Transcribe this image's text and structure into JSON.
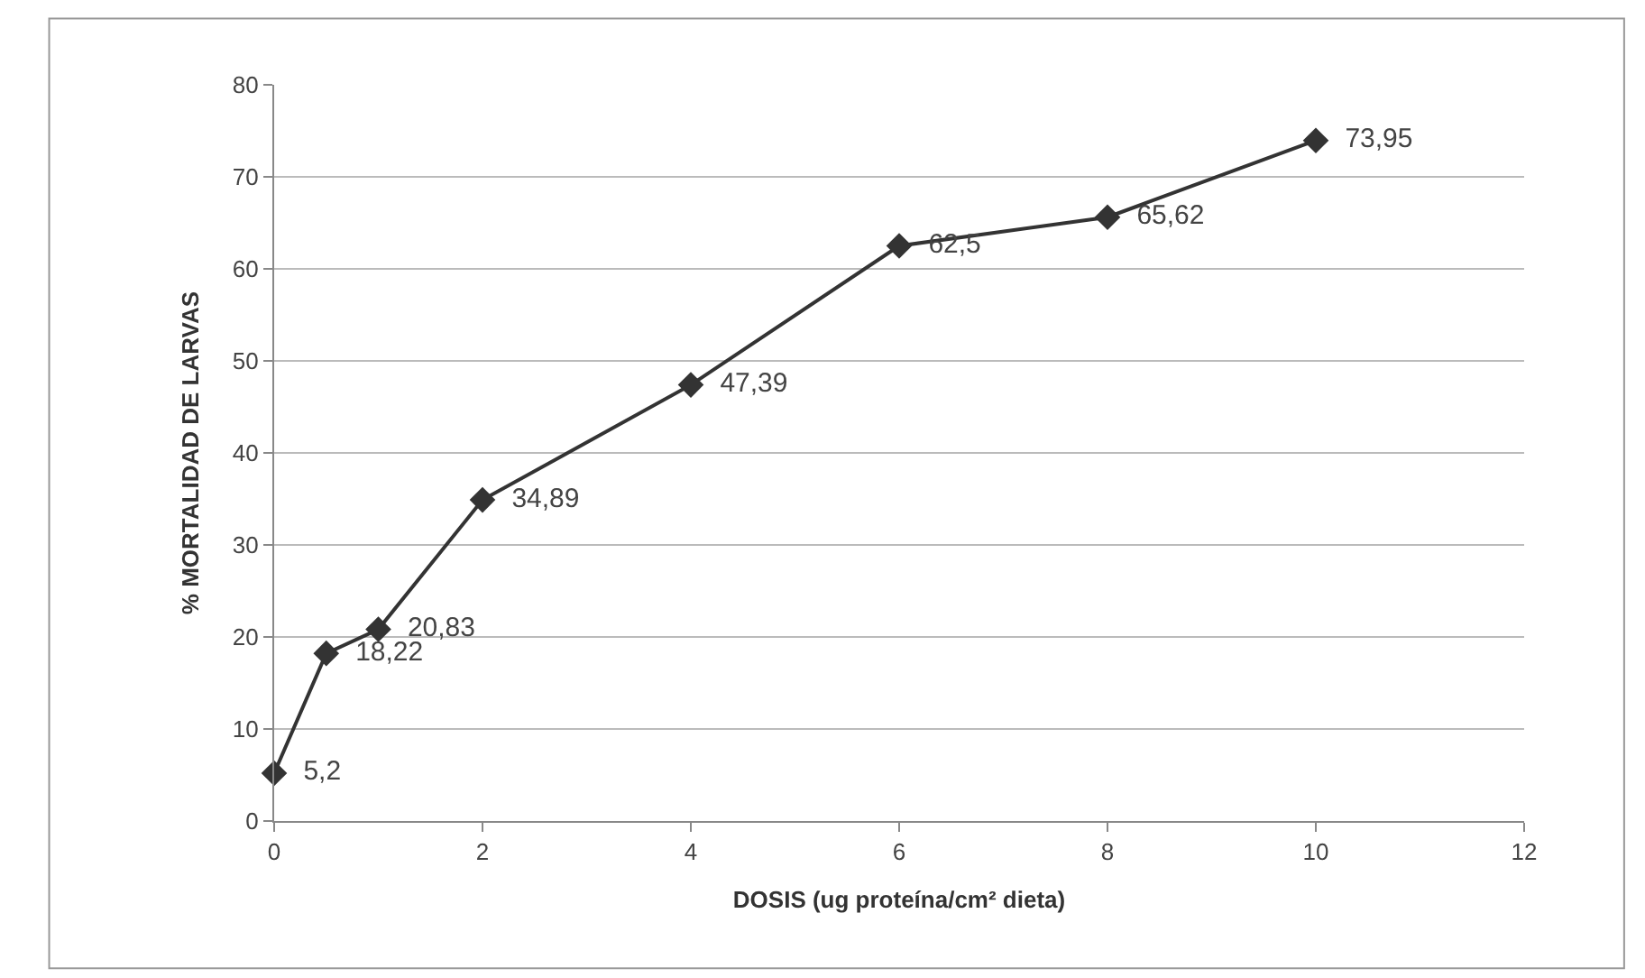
{
  "chart_data": {
    "type": "line",
    "xlabel": "DOSIS (ug proteína/cm² dieta)",
    "ylabel": "% MORTALIDAD DE LARVAS",
    "x": [
      0,
      0.5,
      1,
      2,
      4,
      6,
      8,
      10
    ],
    "series": [
      {
        "color": "#333333",
        "values": [
          5.2,
          18.22,
          20.83,
          34.89,
          47.39,
          62.5,
          65.62,
          73.95
        ],
        "value_labels": [
          "5,2",
          "18,22",
          "20,83",
          "34,89",
          "47,39",
          "62,5",
          "65,62",
          "73,95"
        ]
      }
    ],
    "xlim": [
      0,
      12
    ],
    "xticks": [
      0,
      2,
      4,
      6,
      8,
      10,
      12
    ],
    "ylim": [
      0,
      80
    ],
    "yticks": [
      0,
      10,
      20,
      30,
      40,
      50,
      60,
      70,
      80
    ],
    "grid": "y",
    "marker": "diamond",
    "line_style": "solid",
    "legend": false
  }
}
